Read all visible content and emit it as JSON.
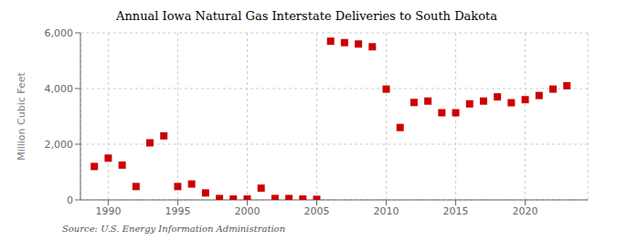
{
  "chart_data": {
    "type": "scatter",
    "title": "Annual Iowa Natural Gas Interstate Deliveries to South Dakota",
    "ylabel": "Million Cubic Feet",
    "source": "Source: U.S. Energy Information Administration",
    "x": [
      1989,
      1990,
      1991,
      1992,
      1993,
      1994,
      1995,
      1996,
      1997,
      1998,
      1999,
      2000,
      2001,
      2002,
      2003,
      2004,
      2005,
      2006,
      2007,
      2008,
      2009,
      2010,
      2011,
      2012,
      2013,
      2014,
      2015,
      2016,
      2017,
      2018,
      2019,
      2020,
      2021,
      2022,
      2023
    ],
    "values": [
      1200,
      1500,
      1250,
      480,
      2050,
      2300,
      480,
      570,
      250,
      50,
      30,
      30,
      420,
      50,
      50,
      30,
      20,
      5700,
      5650,
      5600,
      5500,
      3980,
      2600,
      3500,
      3550,
      3130,
      3130,
      3450,
      3550,
      3700,
      3490,
      3600,
      3750,
      3980,
      4100
    ],
    "color": "#cc0000",
    "marker": "square",
    "xlim": [
      1988.0,
      2024.5
    ],
    "xticks": [
      1990,
      1995,
      2000,
      2005,
      2010,
      2015,
      2020
    ],
    "ylim": [
      0,
      6000
    ],
    "yticks": [
      0,
      {
        "value": 2000,
        "label": "2,000"
      },
      {
        "value": 4000,
        "label": "4,000"
      },
      {
        "value": 6000,
        "label": "6,000"
      }
    ],
    "grid": true
  }
}
